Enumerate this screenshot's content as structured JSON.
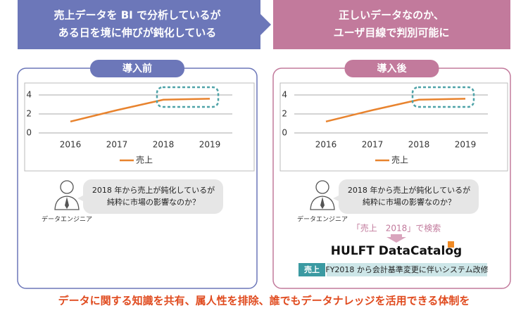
{
  "banners": [
    {
      "lines": [
        "売上データを BI で分析しているが",
        "ある日を境に伸びが鈍化している"
      ]
    },
    {
      "lines": [
        "正しいデータなのか、",
        "ユーザ目線で判別可能に"
      ]
    }
  ],
  "panels": [
    {
      "tab": "導入前",
      "chart": {
        "type": "line",
        "categories": [
          "2016",
          "2017",
          "2018",
          "2019"
        ],
        "series": [
          {
            "name": "売上",
            "color": "#e8832e",
            "values": [
              1.2,
              2.4,
              3.5,
              3.6
            ]
          }
        ],
        "ylim": [
          0,
          4
        ],
        "yticks": [
          0,
          2,
          4
        ],
        "grid": true
      },
      "speech": [
        "2018 年から売上が鈍化しているが",
        "純粋に市場の影響なのか？"
      ],
      "role": "データエンジニア"
    },
    {
      "tab": "導入後",
      "chart": {
        "type": "line",
        "categories": [
          "2016",
          "2017",
          "2018",
          "2019"
        ],
        "series": [
          {
            "name": "売上",
            "color": "#e8832e",
            "values": [
              1.2,
              2.4,
              3.5,
              3.6
            ]
          }
        ],
        "ylim": [
          0,
          4
        ],
        "yticks": [
          0,
          2,
          4
        ],
        "grid": true
      },
      "speech": [
        "2018 年から売上が鈍化しているが",
        "純粋に市場の影響なのか？"
      ],
      "role": "データエンジニア",
      "search": "「売上　2018」で検索",
      "product": "HULFT DataCatalog",
      "result": {
        "tag": "売上",
        "note": "FY2018 から会計基準変更に伴いシステム改修"
      }
    }
  ],
  "footer": "データに関する知識を共有、属人性を排除、誰でもデータナレッジを活用できる体制を"
}
